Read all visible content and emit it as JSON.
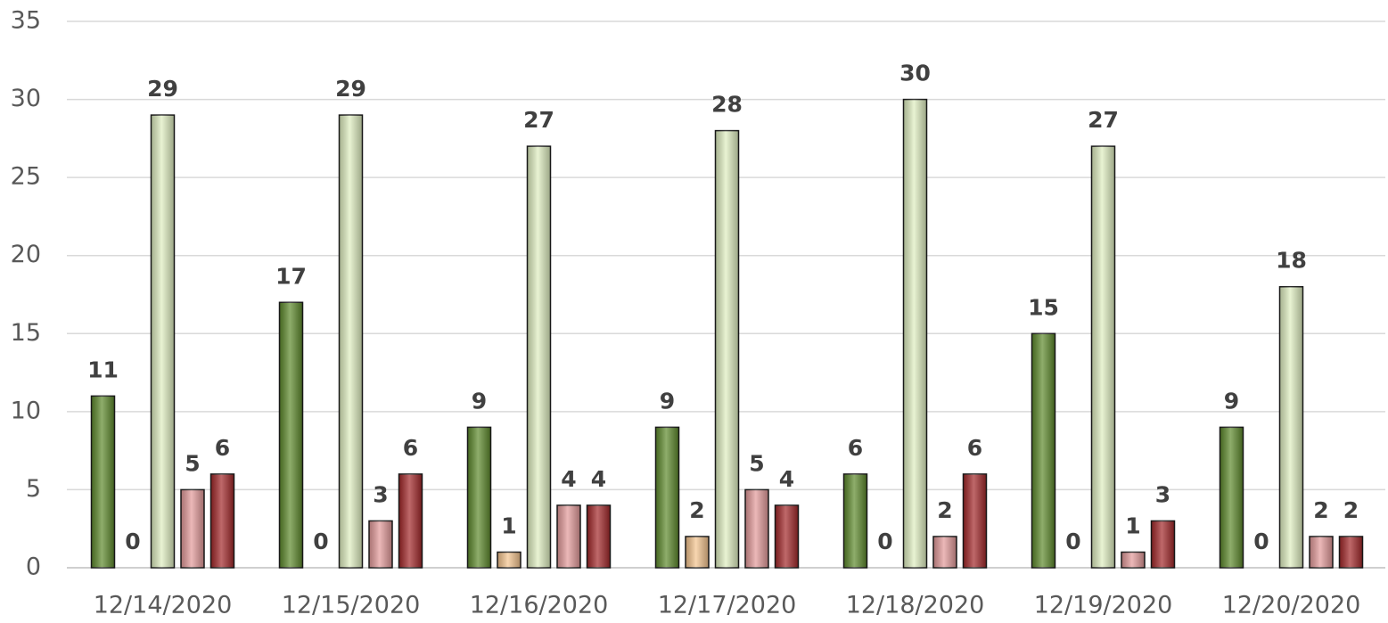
{
  "chart_data": {
    "type": "bar",
    "categories": [
      "12/14/2020",
      "12/15/2020",
      "12/16/2020",
      "12/17/2020",
      "12/18/2020",
      "12/19/2020",
      "12/20/2020"
    ],
    "series": [
      {
        "color": "#5e8a2c",
        "values": [
          11,
          17,
          9,
          9,
          6,
          15,
          9
        ]
      },
      {
        "color": "#f4c48e",
        "values": [
          0,
          0,
          1,
          2,
          0,
          0,
          0
        ]
      },
      {
        "color": "#dfeec0",
        "values": [
          29,
          29,
          27,
          28,
          30,
          27,
          18
        ]
      },
      {
        "color": "#e39a9a",
        "values": [
          5,
          3,
          4,
          5,
          2,
          1,
          2
        ]
      },
      {
        "color": "#a3282a",
        "values": [
          6,
          6,
          4,
          4,
          6,
          3,
          2
        ]
      }
    ],
    "ylim": [
      0,
      35
    ],
    "yticks": [
      0,
      5,
      10,
      15,
      20,
      25,
      30,
      35
    ],
    "grid": true
  }
}
